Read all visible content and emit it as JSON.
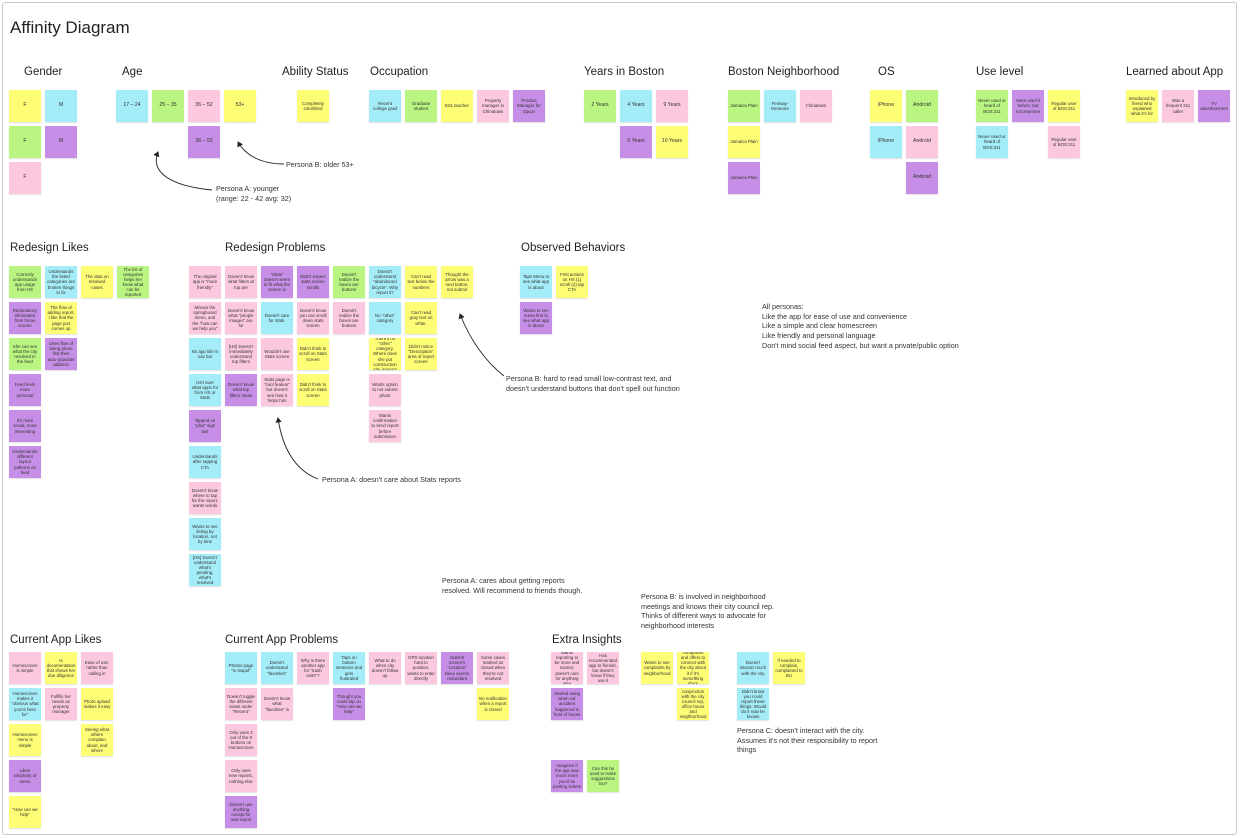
{
  "title": "Affinity Diagram",
  "headers": [
    {
      "id": "gender",
      "text": "Gender"
    },
    {
      "id": "age",
      "text": "Age"
    },
    {
      "id": "ability",
      "text": "Ability Status"
    },
    {
      "id": "occupation",
      "text": "Occupation"
    },
    {
      "id": "years",
      "text": "Years in Boston"
    },
    {
      "id": "neighborhood",
      "text": "Boston Neighborhood"
    },
    {
      "id": "os",
      "text": "OS"
    },
    {
      "id": "use",
      "text": "Use level"
    },
    {
      "id": "learned",
      "text": "Learned about App"
    },
    {
      "id": "redesign_likes",
      "text": "Redesign Likes"
    },
    {
      "id": "redesign_problems",
      "text": "Redesign Problems"
    },
    {
      "id": "observed",
      "text": "Observed Behaviors"
    },
    {
      "id": "current_likes",
      "text": "Current App Likes"
    },
    {
      "id": "current_problems",
      "text": "Current App Problems"
    },
    {
      "id": "extra",
      "text": "Extra Insights"
    }
  ],
  "notes": [
    {
      "id": "n1",
      "color": "yellow",
      "text": "F"
    },
    {
      "id": "n2",
      "color": "cyan",
      "text": "M"
    },
    {
      "id": "n3",
      "color": "green",
      "text": "F"
    },
    {
      "id": "n4",
      "color": "purple",
      "text": "M"
    },
    {
      "id": "n5",
      "color": "pink",
      "text": "F"
    },
    {
      "id": "n6",
      "color": "cyan",
      "text": "17 – 24"
    },
    {
      "id": "n7",
      "color": "green",
      "text": "25 – 35"
    },
    {
      "id": "n8",
      "color": "pink",
      "text": "36 – 52"
    },
    {
      "id": "n9",
      "color": "yellow",
      "text": "53+"
    },
    {
      "id": "n10",
      "color": "purple",
      "text": "36 – 52"
    },
    {
      "id": "n11",
      "color": "yellow",
      "text": "Completely colorblind"
    },
    {
      "id": "n12",
      "color": "cyan",
      "text": "Recent college grad"
    },
    {
      "id": "n13",
      "color": "green",
      "text": "Graduate student"
    },
    {
      "id": "n14",
      "color": "yellow",
      "text": "ESL teacher"
    },
    {
      "id": "n15",
      "color": "pink",
      "text": "Property manager in Chinatown"
    },
    {
      "id": "n16",
      "color": "purple",
      "text": "Product Manager for Zipcar"
    },
    {
      "id": "n17",
      "color": "green",
      "text": "2 Years"
    },
    {
      "id": "n18",
      "color": "cyan",
      "text": "4 Years"
    },
    {
      "id": "n19",
      "color": "pink",
      "text": "9 Years"
    },
    {
      "id": "n20",
      "color": "purple",
      "text": "5 Years"
    },
    {
      "id": "n21",
      "color": "yellow",
      "text": "10 Years"
    },
    {
      "id": "n22",
      "color": "green",
      "text": "Jamaica Plain"
    },
    {
      "id": "n23",
      "color": "cyan",
      "text": "Fenway-Kenmore"
    },
    {
      "id": "n24",
      "color": "pink",
      "text": "Chinatown"
    },
    {
      "id": "n25",
      "color": "yellow",
      "text": "Jamaica Plain"
    },
    {
      "id": "n26",
      "color": "purple",
      "text": "Jamaica Plain"
    },
    {
      "id": "n27",
      "color": "yellow",
      "text": "iPhone"
    },
    {
      "id": "n28",
      "color": "green",
      "text": "Android"
    },
    {
      "id": "n29",
      "color": "cyan",
      "text": "iPhone"
    },
    {
      "id": "n30",
      "color": "pink",
      "text": "Android"
    },
    {
      "id": "n31",
      "color": "purple",
      "text": "Android"
    },
    {
      "id": "n32",
      "color": "green",
      "text": "Never used or heard of BOS:311"
    },
    {
      "id": "n33",
      "color": "purple",
      "text": "Have used it before, but not anymore"
    },
    {
      "id": "n34",
      "color": "yellow",
      "text": "Regular user of BOS:311"
    },
    {
      "id": "n35",
      "color": "cyan",
      "text": "Never used or heard of BOS:311"
    },
    {
      "id": "n36",
      "color": "pink",
      "text": "Regular user of BOS:311"
    },
    {
      "id": "n37",
      "color": "yellow",
      "text": "Introduced by friend who explained what it's for"
    },
    {
      "id": "n38",
      "color": "pink",
      "text": "Was a frequent 311 caller"
    },
    {
      "id": "n39",
      "color": "purple",
      "text": "TV advertisement"
    },
    {
      "id": "n40",
      "color": "green",
      "text": "Correctly understands app usage from HS"
    },
    {
      "id": "n41",
      "color": "cyan",
      "text": "Understands the listed categories are broken things to fix"
    },
    {
      "id": "n42",
      "color": "yellow",
      "text": "The data on resolved cases"
    },
    {
      "id": "n43",
      "color": "green",
      "text": "The list of categories helps her know what can be reported"
    },
    {
      "id": "n44",
      "color": "purple",
      "text": "Redundancy eliminated from home screen"
    },
    {
      "id": "n45",
      "color": "yellow",
      "text": "The flow of adding report, I like that the page just comes up"
    },
    {
      "id": "n46",
      "color": "green",
      "text": "She can see what the city resolved in the feed"
    },
    {
      "id": "n47",
      "color": "purple",
      "text": "Likes flow of being photo first then auto-populate address"
    },
    {
      "id": "n48",
      "color": "purple",
      "text": "Feed feels more personal"
    },
    {
      "id": "n49",
      "color": "purple",
      "text": "It's more visual, more interesting"
    },
    {
      "id": "n50",
      "color": "purple",
      "text": "Understands different layout patterns on feed"
    },
    {
      "id": "n51",
      "color": "pink",
      "text": "The original app is \"more friendly\""
    },
    {
      "id": "n52",
      "color": "pink",
      "text": "Doesn't know what filters at top are"
    },
    {
      "id": "n53",
      "color": "purple",
      "text": "\"Stats\" doesn't seem to fit what the screen is"
    },
    {
      "id": "n54",
      "color": "purple",
      "text": "Didn't expect stats screen scrolls"
    },
    {
      "id": "n55",
      "color": "green",
      "text": "Doesn't realize the boxes are buttons"
    },
    {
      "id": "n56",
      "color": "cyan",
      "text": "Doesn't understand \"abandoned bicycle\". Why report it?"
    },
    {
      "id": "n57",
      "color": "yellow",
      "text": "Can't read text below the numbers"
    },
    {
      "id": "n58",
      "color": "yellow",
      "text": "Thought the arrow was a next button, not submit"
    },
    {
      "id": "n59",
      "color": "pink",
      "text": "Misses the springboard menu, and the \"how can we help you\""
    },
    {
      "id": "n60",
      "color": "pink",
      "text": "Doesn't know what \"people images\" are for"
    },
    {
      "id": "n61",
      "color": "cyan",
      "text": "Doesn't care for stats."
    },
    {
      "id": "n62",
      "color": "pink",
      "text": "Doesn't know you can scroll down stats screen"
    },
    {
      "id": "n63",
      "color": "pink",
      "text": "Doesn't realize the boxes are buttons"
    },
    {
      "id": "n64",
      "color": "cyan",
      "text": "No \"other\" category"
    },
    {
      "id": "n65",
      "color": "yellow",
      "text": "Can't read gray text on white."
    },
    {
      "id": "n66",
      "color": "cyan",
      "text": "No app title in nav bar"
    },
    {
      "id": "n67",
      "color": "pink",
      "text": "[HS] Doesn't immediately understand top filters"
    },
    {
      "id": "n68",
      "color": "pink",
      "text": "Wouldn't use Stats screen"
    },
    {
      "id": "n69",
      "color": "yellow",
      "text": "Didn't think to scroll on Stats screen"
    },
    {
      "id": "n70",
      "color": "yellow",
      "text": "There's no \"other\" category. Where does she put construction site issues?"
    },
    {
      "id": "n71",
      "color": "yellow",
      "text": "Didn't notice \"Description\" area of report screen"
    },
    {
      "id": "n72",
      "color": "cyan",
      "text": "Isn't sure what apps for from HS or Stats"
    },
    {
      "id": "n73",
      "color": "purple",
      "text": "Doesn't know what top filters mean"
    },
    {
      "id": "n74",
      "color": "pink",
      "text": "Stats page is \"cool feature\" but doesn't see how it helps him"
    },
    {
      "id": "n75",
      "color": "yellow",
      "text": "Didn't think to scroll on Stats screen"
    },
    {
      "id": "n76",
      "color": "pink",
      "text": "Wants option to not submit photo"
    },
    {
      "id": "n77",
      "color": "purple",
      "text": "Tapped on \"plus\" sign last"
    },
    {
      "id": "n78",
      "color": "pink",
      "text": "Wants confirmation to send report before submission"
    },
    {
      "id": "n79",
      "color": "cyan",
      "text": "Understands after tapping CTA"
    },
    {
      "id": "n80",
      "color": "pink",
      "text": "Doesn't know where to tap for the report, wants words"
    },
    {
      "id": "n81",
      "color": "cyan",
      "text": "Wants to see listing by location, not by time"
    },
    {
      "id": "n82",
      "color": "cyan",
      "text": "[HS] Doesn't understand what's pending, what's resolved"
    },
    {
      "id": "n83",
      "color": "cyan",
      "text": "Taps Menu to see what app is about"
    },
    {
      "id": "n84",
      "color": "yellow",
      "text": "First actions on HS (1) scroll (2) tap CTA"
    },
    {
      "id": "n85",
      "color": "purple",
      "text": "Wants to see menu first to see what app is about"
    },
    {
      "id": "n86",
      "color": "pink",
      "text": "Homescreen is simple"
    },
    {
      "id": "n87",
      "color": "yellow",
      "text": "Is documentation that shows her due diligence"
    },
    {
      "id": "n88",
      "color": "pink",
      "text": "Ease of use, rather than calling in"
    },
    {
      "id": "n89",
      "color": "cyan",
      "text": "Homescreen makes it \"obvious what you're here for\""
    },
    {
      "id": "n90",
      "color": "pink",
      "text": "Fulfills her needs as property manager"
    },
    {
      "id": "n91",
      "color": "yellow",
      "text": "Photo upload makes it easy"
    },
    {
      "id": "n92",
      "color": "yellow",
      "text": "Homescreen menu is simple"
    },
    {
      "id": "n93",
      "color": "yellow",
      "text": "Seeing what others complain about, and where"
    },
    {
      "id": "n94",
      "color": "purple",
      "text": "Likes simplicity of menu"
    },
    {
      "id": "n95",
      "color": "yellow",
      "text": "\"How can we help\""
    },
    {
      "id": "n96",
      "color": "cyan",
      "text": "Photos page \"is stupid\""
    },
    {
      "id": "n97",
      "color": "cyan",
      "text": "Doesn't understand \"favorites\""
    },
    {
      "id": "n98",
      "color": "pink",
      "text": "Why is there another app for \"trash exits\"?"
    },
    {
      "id": "n99",
      "color": "cyan",
      "text": "Taps on bottom sentence and gets frustrated"
    },
    {
      "id": "n100",
      "color": "pink",
      "text": "What to do when city doesn't follow up"
    },
    {
      "id": "n101",
      "color": "pink",
      "text": "GPS location hard to position, wants to enter directly"
    },
    {
      "id": "n102",
      "color": "purple",
      "text": "Submit screen's \"Location\" twice seems redundant"
    },
    {
      "id": "n103",
      "color": "pink",
      "text": "Some cases marked as closed when they're not resolved"
    },
    {
      "id": "n104",
      "color": "pink",
      "text": "Doesn't toggle the different views under \"Recent\""
    },
    {
      "id": "n105",
      "color": "pink",
      "text": "Doesn't know what \"favorites\" is"
    },
    {
      "id": "n106",
      "color": "purple",
      "text": "Thought you could tap on \"How can we help\""
    },
    {
      "id": "n107",
      "color": "yellow",
      "text": "No notification when a report is closed"
    },
    {
      "id": "n108",
      "color": "pink",
      "text": "Only uses 3 out of the 9 buttons on Homescreen"
    },
    {
      "id": "n109",
      "color": "pink",
      "text": "Only uses new reports, nothing else"
    },
    {
      "id": "n110",
      "color": "purple",
      "text": "Doesn't use anything except for new report"
    },
    {
      "id": "n111",
      "color": "pink",
      "text": "Wants reporting to be more and sooner, doesn't care for anything else"
    },
    {
      "id": "n112",
      "color": "pink",
      "text": "Has recommended app to friends, but doesn't know if they use it"
    },
    {
      "id": "n113",
      "color": "yellow",
      "text": "Wants to see complaints by neighborhood"
    },
    {
      "id": "n114",
      "color": "yellow",
      "text": "She sees the complaints and offers to connect with the city about it if it's something she's interested in"
    },
    {
      "id": "n115",
      "color": "cyan",
      "text": "Doesn't interact much with the city"
    },
    {
      "id": "n116",
      "color": "yellow",
      "text": "If needed to complain, complained to BU"
    },
    {
      "id": "n117",
      "color": "purple",
      "text": "Started using when car accident happened in front of house"
    },
    {
      "id": "n118",
      "color": "yellow",
      "text": "Uses this in conjunction with the city council rep, office hours and neighborhood meetings"
    },
    {
      "id": "n119",
      "color": "cyan",
      "text": "Didn't know you could report these things. Would do it now he knows"
    },
    {
      "id": "n120",
      "color": "purple",
      "text": "Imagines if the app was much more you'd be posting tickets"
    },
    {
      "id": "n121",
      "color": "green",
      "text": "Can this be used to make suggestions too?"
    }
  ],
  "annotations": [
    {
      "id": "a_persona_a_age",
      "text": "Persona A: younger\n(range: 22 - 42 avg: 32)"
    },
    {
      "id": "a_persona_b_age",
      "text": "Persona B: older 53+"
    },
    {
      "id": "a_personas_all",
      "text": "All personas:\nLike the app for ease of use and convenience\nLike a simple and clear homescreen\nLike friendly and personal language\nDon't mind social feed aspect, but want a private/public option"
    },
    {
      "id": "a_persona_b_text",
      "text": "Persona B: hard to read small low-contrast text, and\ndoesn't understand buttons that don't spell out function"
    },
    {
      "id": "a_persona_a_stats",
      "text": "Persona A: doesn't care about Stats reports"
    },
    {
      "id": "a_persona_a_resolved",
      "text": "Persona A: cares about getting reports\nresolved. Will recommend to friends though."
    },
    {
      "id": "a_persona_b_neighborhood",
      "text": "Persona B: is involved in neighborhood\nmeetings and knows their city council rep.\nThinks of different ways to advocate for\nneighborhood interests"
    },
    {
      "id": "a_persona_c",
      "text": "Persona C: doesn't interact with the city.\nAssumes it's not their responsibility to report\nthings"
    }
  ],
  "colors": {
    "yellow": "#fdfd76",
    "pink": "#fbc8e0",
    "green": "#b9f580",
    "cyan": "#a4ecf7",
    "purple": "#c68ee6",
    "background": "#ffffff"
  }
}
